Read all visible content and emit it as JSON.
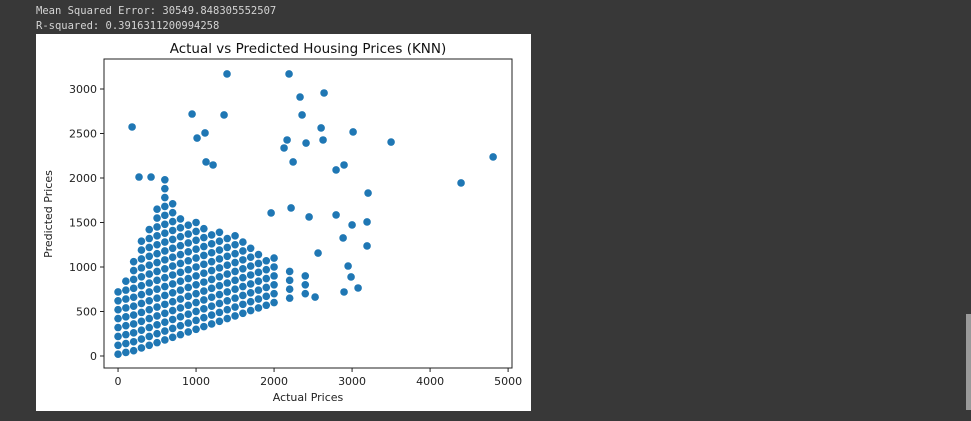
{
  "output": {
    "lines": [
      "Mean Squared Error: 30549.848305552507",
      "R-squared: 0.3916311200994258"
    ]
  },
  "chart_data": {
    "type": "scatter",
    "title": "Actual vs Predicted Housing Prices (KNN)",
    "x_label": "Actual Prices",
    "y_label": "Predicted Prices",
    "color": "#1f77b4",
    "xlim": [
      -180,
      5050
    ],
    "ylim": [
      -135,
      3337
    ],
    "xticks": [
      0,
      1000,
      2000,
      3000,
      4000,
      5000
    ],
    "yticks": [
      0,
      500,
      1000,
      1500,
      2000,
      2500,
      3000
    ],
    "x": [
      0,
      0,
      0,
      0,
      0,
      0,
      0,
      0,
      100,
      100,
      100,
      100,
      100,
      100,
      100,
      100,
      100,
      200,
      200,
      200,
      200,
      200,
      200,
      200,
      200,
      200,
      200,
      200,
      300,
      300,
      300,
      300,
      300,
      300,
      300,
      300,
      300,
      300,
      300,
      300,
      300,
      400,
      400,
      400,
      400,
      400,
      400,
      400,
      400,
      400,
      400,
      400,
      400,
      400,
      400,
      500,
      500,
      500,
      500,
      500,
      500,
      500,
      500,
      500,
      500,
      500,
      500,
      500,
      500,
      500,
      500,
      600,
      600,
      600,
      600,
      600,
      600,
      600,
      600,
      600,
      600,
      600,
      600,
      600,
      600,
      600,
      600,
      600,
      600,
      600,
      700,
      700,
      700,
      700,
      700,
      700,
      700,
      700,
      700,
      700,
      700,
      700,
      700,
      700,
      700,
      700,
      800,
      800,
      800,
      800,
      800,
      800,
      800,
      800,
      800,
      800,
      800,
      800,
      800,
      800,
      900,
      900,
      900,
      900,
      900,
      900,
      900,
      900,
      900,
      900,
      900,
      900,
      900,
      1000,
      1000,
      1000,
      1000,
      1000,
      1000,
      1000,
      1000,
      1000,
      1000,
      1000,
      1000,
      1000,
      1100,
      1100,
      1100,
      1100,
      1100,
      1100,
      1100,
      1100,
      1100,
      1100,
      1100,
      1100,
      1200,
      1200,
      1200,
      1200,
      1200,
      1200,
      1200,
      1200,
      1200,
      1200,
      1200,
      1300,
      1300,
      1300,
      1300,
      1300,
      1300,
      1300,
      1300,
      1300,
      1300,
      1300,
      1400,
      1400,
      1400,
      1400,
      1400,
      1400,
      1400,
      1400,
      1400,
      1400,
      1500,
      1500,
      1500,
      1500,
      1500,
      1500,
      1500,
      1500,
      1500,
      1500,
      1600,
      1600,
      1600,
      1600,
      1600,
      1600,
      1600,
      1600,
      1600,
      1700,
      1700,
      1700,
      1700,
      1700,
      1700,
      1700,
      1700,
      1800,
      1800,
      1800,
      1800,
      1800,
      1800,
      1800,
      1900,
      1900,
      1900,
      1900,
      1900,
      1900,
      2000,
      2000,
      2000,
      2000,
      2000,
      2000,
      2200,
      2200,
      2200,
      2200,
      2400,
      2400,
      2400,
      180,
      1397,
      2192,
      2641,
      2333,
      2359,
      1359,
      949,
      1115,
      1013,
      2603,
      2628,
      3013,
      3500,
      4808,
      4397,
      3205,
      2897,
      2795,
      2167,
      2128,
      2244,
      2410,
      1128,
      1218,
      269,
      423,
      2795,
      2885,
      3000,
      3192,
      3192,
      3077,
      2897,
      2987,
      2949,
      2526,
      2564,
      2449,
      2218,
      1962
    ],
    "values": [
      20,
      120,
      220,
      320,
      420,
      520,
      620,
      720,
      40,
      140,
      240,
      340,
      440,
      540,
      640,
      740,
      840,
      60,
      160,
      260,
      360,
      460,
      560,
      660,
      760,
      860,
      960,
      1060,
      90,
      190,
      290,
      390,
      490,
      590,
      690,
      790,
      890,
      990,
      1090,
      1190,
      1290,
      120,
      220,
      320,
      420,
      520,
      620,
      720,
      820,
      920,
      1020,
      1120,
      1220,
      1320,
      1420,
      150,
      250,
      350,
      450,
      550,
      650,
      750,
      850,
      950,
      1050,
      1150,
      1250,
      1350,
      1450,
      1550,
      1650,
      180,
      280,
      380,
      480,
      580,
      680,
      780,
      880,
      980,
      1080,
      1180,
      1280,
      1380,
      1480,
      1580,
      1680,
      1780,
      1880,
      1980,
      210,
      310,
      410,
      510,
      610,
      710,
      810,
      910,
      1010,
      1110,
      1210,
      1310,
      1410,
      1510,
      1610,
      1710,
      240,
      340,
      440,
      540,
      640,
      740,
      840,
      940,
      1040,
      1140,
      1240,
      1340,
      1440,
      1540,
      270,
      370,
      470,
      570,
      670,
      770,
      870,
      970,
      1070,
      1170,
      1270,
      1370,
      1470,
      300,
      400,
      500,
      600,
      700,
      800,
      900,
      1000,
      1100,
      1200,
      1300,
      1400,
      1500,
      330,
      430,
      530,
      630,
      730,
      830,
      930,
      1030,
      1130,
      1230,
      1330,
      1430,
      360,
      460,
      560,
      660,
      760,
      860,
      960,
      1060,
      1160,
      1260,
      1360,
      390,
      490,
      590,
      690,
      790,
      890,
      990,
      1090,
      1190,
      1290,
      1390,
      420,
      520,
      620,
      720,
      820,
      920,
      1020,
      1120,
      1220,
      1320,
      450,
      550,
      650,
      750,
      850,
      950,
      1050,
      1150,
      1250,
      1350,
      480,
      580,
      680,
      780,
      880,
      980,
      1080,
      1180,
      1280,
      510,
      610,
      710,
      810,
      910,
      1010,
      1110,
      1210,
      540,
      640,
      740,
      840,
      940,
      1040,
      1140,
      570,
      670,
      770,
      870,
      970,
      1070,
      600,
      700,
      800,
      900,
      1000,
      1100,
      650,
      750,
      850,
      950,
      700,
      800,
      900,
      2573,
      3169,
      3169,
      2955,
      2910,
      2708,
      2708,
      2719,
      2506,
      2449,
      2562,
      2427,
      2517,
      2404,
      2236,
      1944,
      1831,
      2146,
      2090,
      2427,
      2337,
      2180,
      2393,
      2180,
      2146,
      2011,
      2011,
      1585,
      1326,
      1472,
      1506,
      1236,
      764,
      719,
      888,
      1011,
      662,
      1157,
      1562,
      1663,
      1607
    ]
  }
}
